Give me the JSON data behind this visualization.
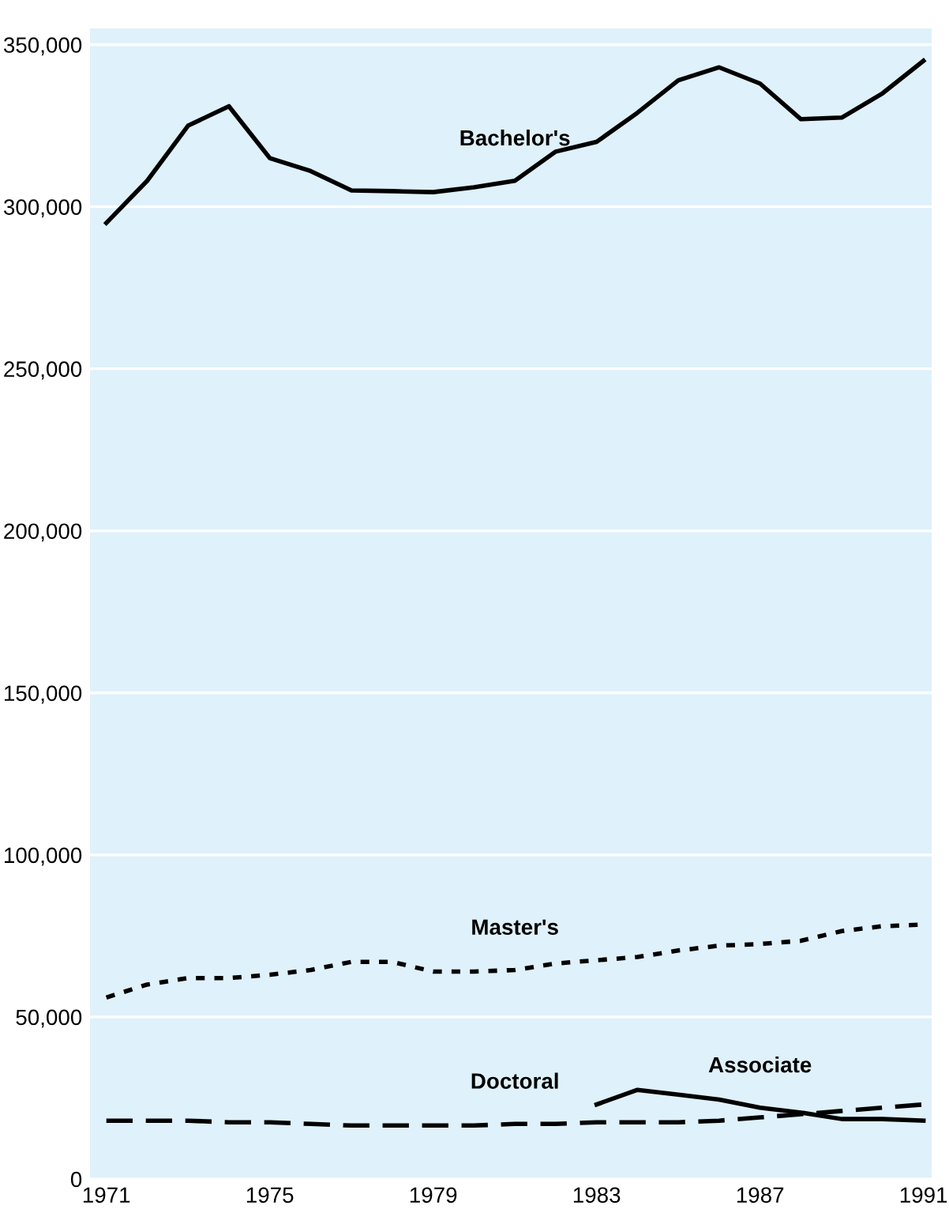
{
  "chart_data": {
    "type": "line",
    "x": [
      1971,
      1972,
      1973,
      1974,
      1975,
      1976,
      1977,
      1978,
      1979,
      1980,
      1981,
      1982,
      1983,
      1984,
      1985,
      1986,
      1987,
      1988,
      1989,
      1990,
      1991
    ],
    "series": [
      {
        "name": "Bachelor's",
        "color": "#000000",
        "line_style": "solid",
        "values": [
          295000,
          308000,
          325000,
          331000,
          315000,
          311000,
          305000,
          304800,
          304500,
          306000,
          308000,
          317000,
          320000,
          329000,
          339000,
          343000,
          338000,
          327000,
          327500,
          335000,
          345000
        ]
      },
      {
        "name": "Master's",
        "color": "#000000",
        "line_style": "dotted",
        "values": [
          56000,
          60000,
          62000,
          62000,
          63000,
          64500,
          67000,
          67000,
          64000,
          64000,
          64500,
          66500,
          67500,
          68500,
          70500,
          72000,
          72500,
          73500,
          76500,
          78000,
          78500
        ]
      },
      {
        "name": "Doctoral",
        "color": "#000000",
        "line_style": "dashed",
        "values": [
          18000,
          18000,
          18000,
          17500,
          17500,
          17000,
          16500,
          16500,
          16500,
          16500,
          17000,
          17000,
          17500,
          17500,
          17500,
          18000,
          19000,
          20000,
          21000,
          22000,
          23000
        ]
      },
      {
        "name": "Associate",
        "color": "#000000",
        "line_style": "solid",
        "values": [
          null,
          null,
          null,
          null,
          null,
          null,
          null,
          null,
          null,
          null,
          null,
          null,
          23000,
          27500,
          26000,
          24500,
          22000,
          20500,
          18500,
          18500,
          18000
        ]
      }
    ],
    "xlim": [
      1970.6,
      1991.2
    ],
    "xticks": [
      1971,
      1975,
      1979,
      1983,
      1987,
      1991
    ],
    "ylim": [
      0,
      355000
    ],
    "yticks": [
      {
        "value": 0,
        "label": "0"
      },
      {
        "value": 50000,
        "label": "50,000"
      },
      {
        "value": 100000,
        "label": "100,000"
      },
      {
        "value": 150000,
        "label": "150,000"
      },
      {
        "value": 200000,
        "label": "200,000"
      },
      {
        "value": 250000,
        "label": "250,000"
      },
      {
        "value": 300000,
        "label": "300,000"
      },
      {
        "value": 350000,
        "label": "350,000"
      }
    ],
    "grid": "y",
    "legend": false,
    "marker": "none"
  }
}
